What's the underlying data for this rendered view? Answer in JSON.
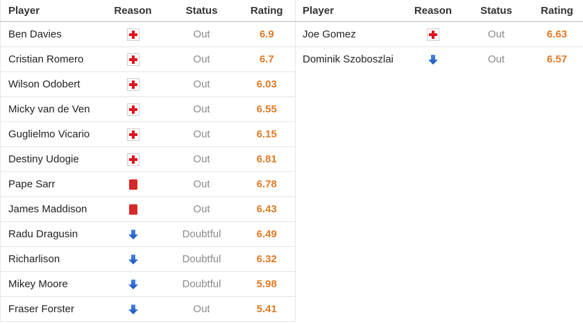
{
  "tables": [
    {
      "headers": [
        "Player",
        "Reason",
        "Status",
        "Rating"
      ],
      "rows": [
        {
          "player": "Ben Davies",
          "status": "Out",
          "rating": 6.9
        },
        {
          "player": "Cristian Romero",
          "status": "Out",
          "rating": 6.7
        },
        {
          "player": "Wilson Odobert",
          "status": "Out",
          "rating": 6.03
        },
        {
          "player": "Micky van de Ven",
          "status": "Out",
          "rating": 6.55
        },
        {
          "player": "Guglielmo Vicario",
          "status": "Out",
          "rating": 6.15
        },
        {
          "player": "Destiny Udogie",
          "status": "Out",
          "rating": 6.81
        },
        {
          "player": "Pape Sarr",
          "status": "Out",
          "rating": 6.78
        },
        {
          "player": "James Maddison",
          "status": "Out",
          "rating": 6.43
        },
        {
          "player": "Radu Dragusin",
          "status": "Doubtful",
          "rating": 6.49
        },
        {
          "player": "Richarlison",
          "status": "Doubtful",
          "rating": 6.32
        },
        {
          "player": "Mikey Moore",
          "status": "Doubtful",
          "rating": 5.98
        },
        {
          "player": "Fraser Forster",
          "status": "Out",
          "rating": 5.41
        }
      ]
    },
    {
      "headers": [
        "Player",
        "Reason",
        "Status",
        "Rating"
      ],
      "rows": [
        {
          "player": "Joe Gomez",
          "status": "Out",
          "rating": 6.63
        },
        {
          "player": "Dominik Szoboszlai",
          "status": "Out",
          "rating": 6.57
        }
      ]
    }
  ]
}
